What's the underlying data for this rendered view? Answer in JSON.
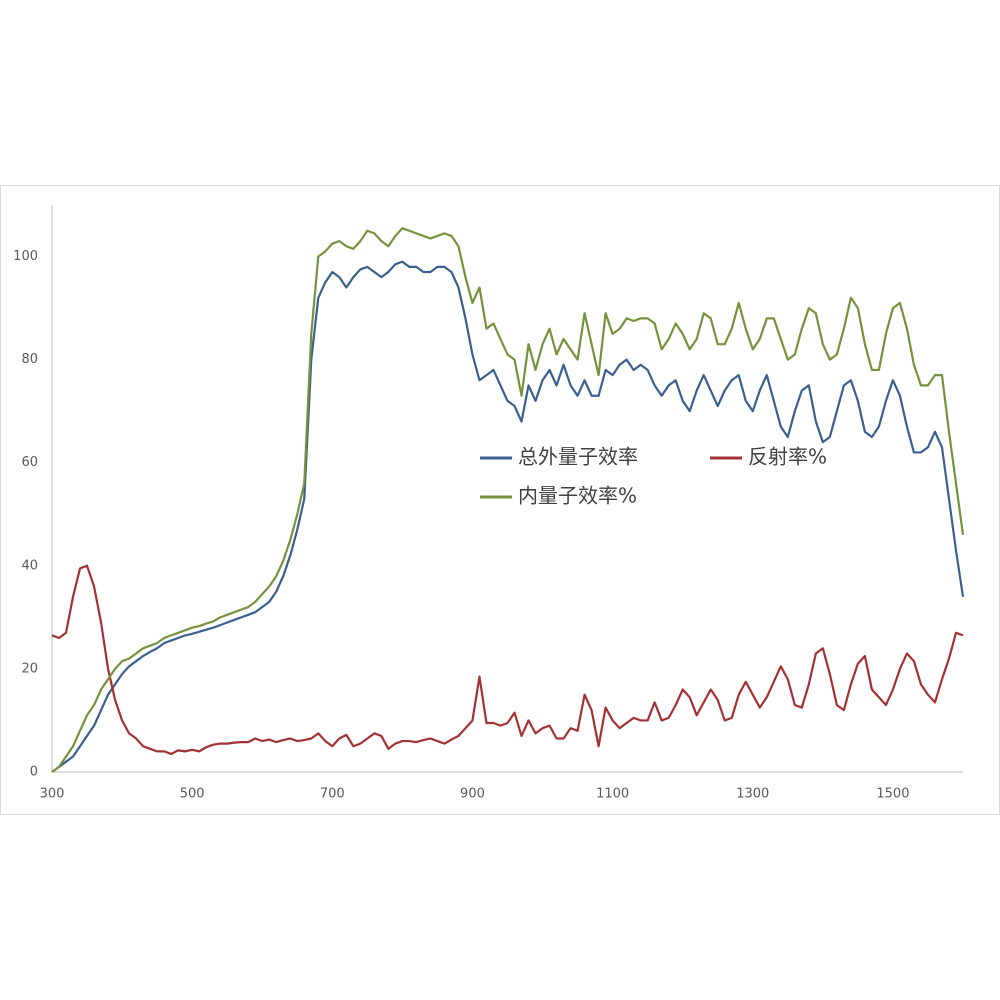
{
  "chart_data": {
    "type": "line",
    "x": [
      300,
      310,
      320,
      330,
      340,
      350,
      360,
      370,
      380,
      390,
      400,
      410,
      420,
      430,
      440,
      450,
      460,
      470,
      480,
      490,
      500,
      510,
      520,
      530,
      540,
      550,
      560,
      570,
      580,
      590,
      600,
      610,
      620,
      630,
      640,
      650,
      660,
      670,
      680,
      690,
      700,
      710,
      720,
      730,
      740,
      750,
      760,
      770,
      780,
      790,
      800,
      810,
      820,
      830,
      840,
      850,
      860,
      870,
      880,
      890,
      900,
      910,
      920,
      930,
      940,
      950,
      960,
      970,
      980,
      990,
      1000,
      1010,
      1020,
      1030,
      1040,
      1050,
      1060,
      1070,
      1080,
      1090,
      1100,
      1110,
      1120,
      1130,
      1140,
      1150,
      1160,
      1170,
      1180,
      1190,
      1200,
      1210,
      1220,
      1230,
      1240,
      1250,
      1260,
      1270,
      1280,
      1290,
      1300,
      1310,
      1320,
      1330,
      1340,
      1350,
      1360,
      1370,
      1380,
      1390,
      1400,
      1410,
      1420,
      1430,
      1440,
      1450,
      1460,
      1470,
      1480,
      1490,
      1500,
      1510,
      1520,
      1530,
      1540,
      1550,
      1560,
      1570,
      1580,
      1590,
      1600
    ],
    "series": [
      {
        "name": "总外量子效率",
        "color": "#3b5f8f",
        "values": [
          0,
          1,
          2,
          3,
          5,
          7,
          9,
          12,
          15,
          17,
          19,
          20.5,
          21.5,
          22.5,
          23.3,
          24,
          25,
          25.5,
          26,
          26.5,
          26.8,
          27.2,
          27.6,
          28,
          28.5,
          29,
          29.5,
          30,
          30.5,
          31,
          32,
          33,
          35,
          38,
          42,
          47,
          53,
          80,
          92,
          95,
          97,
          96,
          94,
          96,
          97.5,
          98,
          97,
          96,
          97,
          98.5,
          99,
          98,
          98,
          97,
          97,
          98,
          98,
          97,
          94,
          88,
          81,
          76,
          77,
          78,
          75,
          72,
          71,
          68,
          75,
          72,
          76,
          78,
          75,
          79,
          75,
          73,
          76,
          73,
          73,
          78,
          77,
          79,
          80,
          78,
          79,
          78,
          75,
          73,
          75,
          76,
          72,
          70,
          74,
          77,
          74,
          71,
          74,
          76,
          77,
          72,
          70,
          74,
          77,
          72,
          67,
          65,
          70,
          74,
          75,
          68,
          64,
          65,
          70,
          75,
          76,
          72,
          66,
          65,
          67,
          72,
          76,
          73,
          67,
          62,
          62,
          63,
          66,
          63,
          53,
          43,
          34
        ]
      },
      {
        "name": "反射率%",
        "color": "#a33234",
        "values": [
          26.5,
          26,
          27,
          34,
          39.5,
          40,
          36,
          29,
          20,
          14,
          10,
          7.5,
          6.5,
          5,
          4.5,
          4,
          4,
          3.5,
          4.2,
          4,
          4.3,
          4,
          4.8,
          5.3,
          5.5,
          5.5,
          5.7,
          5.8,
          5.8,
          6.5,
          6,
          6.3,
          5.8,
          6.2,
          6.5,
          6,
          6.2,
          6.5,
          7.5,
          6,
          5,
          6.5,
          7.2,
          5,
          5.5,
          6.5,
          7.5,
          7,
          4.5,
          5.5,
          6,
          6,
          5.8,
          6.2,
          6.5,
          6,
          5.5,
          6.3,
          7,
          8.5,
          10,
          18.5,
          9.5,
          9.5,
          9,
          9.5,
          11.5,
          7,
          10,
          7.5,
          8.5,
          9,
          6.5,
          6.5,
          8.5,
          8,
          15,
          12,
          5,
          12.5,
          10,
          8.5,
          9.5,
          10.5,
          10,
          10,
          13.5,
          10,
          10.5,
          13,
          16,
          14.5,
          11,
          13.5,
          16,
          14,
          10,
          10.5,
          15,
          17.5,
          15,
          12.5,
          14.5,
          17.5,
          20.5,
          18,
          13,
          12.5,
          17,
          23,
          24,
          19,
          13,
          12,
          17,
          21,
          22.5,
          16,
          14.5,
          13,
          16,
          20,
          23,
          21.5,
          17,
          15,
          13.5,
          18,
          22,
          27,
          26.5
        ]
      },
      {
        "name": "内量子效率%",
        "color": "#76923c",
        "values": [
          0,
          1,
          3,
          5,
          8,
          11,
          13,
          16,
          18,
          20,
          21.5,
          22,
          23,
          24,
          24.5,
          25,
          26,
          26.5,
          27,
          27.5,
          28,
          28.3,
          28.8,
          29.2,
          30,
          30.5,
          31,
          31.5,
          32,
          33,
          34.5,
          36,
          38,
          41,
          45,
          50,
          56,
          85,
          100,
          101,
          102.5,
          103,
          102,
          101.5,
          103,
          105,
          104.5,
          103,
          102,
          104,
          105.5,
          105,
          104.5,
          104,
          103.5,
          104,
          104.5,
          104,
          102,
          96,
          91,
          94,
          86,
          87,
          84,
          81,
          80,
          73,
          83,
          78,
          83,
          86,
          81,
          84,
          82,
          80,
          89,
          83,
          77,
          89,
          85,
          86,
          88,
          87.5,
          88,
          88,
          87,
          82,
          84,
          87,
          85,
          82,
          84,
          89,
          88,
          83,
          83,
          86,
          91,
          86,
          82,
          84,
          88,
          88,
          84,
          80,
          81,
          86,
          90,
          89,
          83,
          80,
          81,
          86,
          92,
          90,
          83,
          78,
          78,
          85,
          90,
          91,
          86,
          79,
          75,
          75,
          77,
          77,
          66,
          56,
          46
        ]
      }
    ],
    "xlim": [
      300,
      1600
    ],
    "ylim": [
      0,
      110
    ],
    "xticks": [
      300,
      500,
      700,
      900,
      1100,
      1300,
      1500
    ],
    "yticks": [
      0,
      20,
      40,
      60,
      80,
      100
    ],
    "grid": false,
    "legend": "center"
  }
}
